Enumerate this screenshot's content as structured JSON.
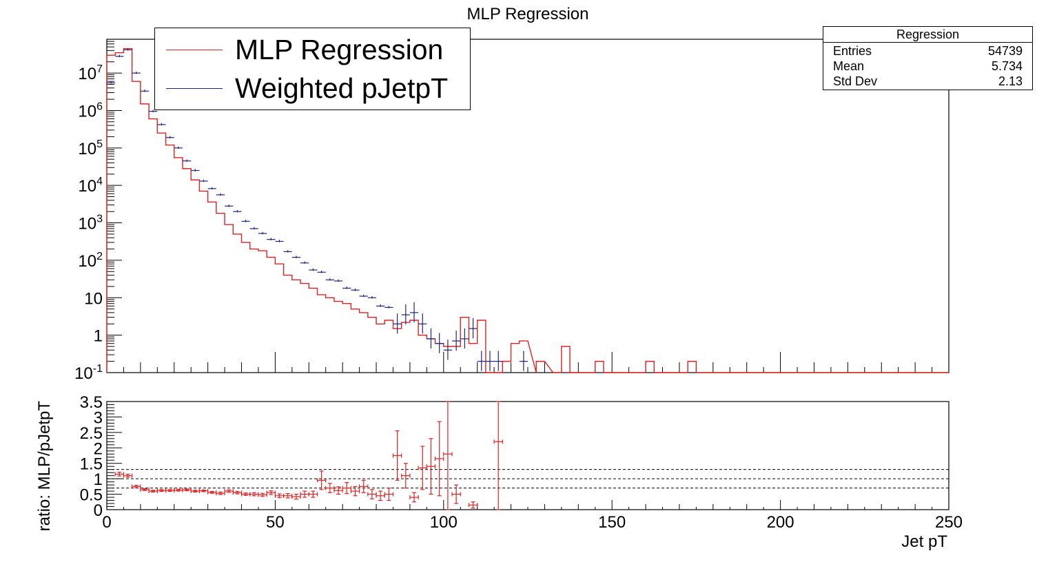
{
  "chart_data": [
    {
      "type": "histogram",
      "title": "MLP Regression",
      "xlim": [
        0,
        250
      ],
      "ylim": [
        0.1,
        80000000
      ],
      "yscale": "log",
      "y_tick_labels": [
        "10^-1",
        "1",
        "10",
        "10^2",
        "10^3",
        "10^4",
        "10^5",
        "10^6",
        "10^7"
      ],
      "bin_width": 2.5,
      "legend": [
        {
          "label": "MLP Regression",
          "color": "#e02020"
        },
        {
          "label": "Weighted pJetpT",
          "color": "#1a237e"
        }
      ],
      "stats_box": {
        "title": "Regression",
        "rows": [
          {
            "label": "Entries",
            "value": "54739"
          },
          {
            "label": "Mean",
            "value": "5.734"
          },
          {
            "label": "Std Dev",
            "value": "2.13"
          }
        ]
      },
      "series": [
        {
          "name": "MLP Regression",
          "style": "step",
          "color": "#e02020",
          "bin_edges_start": [
            0,
            2.5,
            5,
            7.5,
            10,
            12.5,
            15,
            17.5,
            20,
            22.5,
            25,
            27.5,
            30,
            32.5,
            35,
            37.5,
            40,
            42.5,
            45,
            47.5,
            50,
            52.5,
            55,
            57.5,
            60,
            62.5,
            65,
            67.5,
            70,
            72.5,
            75,
            77.5,
            80,
            82.5,
            85,
            87.5,
            90,
            92.5,
            95,
            97.5,
            100,
            102.5,
            105,
            107.5,
            110,
            112.5,
            117.5,
            120,
            122.5,
            127.5,
            132.5,
            135,
            137.5,
            145,
            147.5,
            160,
            162.5,
            172.5,
            175
          ],
          "values": [
            30000000,
            35000000,
            45000000,
            6000000,
            1500000,
            600000,
            250000,
            120000,
            55000,
            28000,
            14000,
            7000,
            3600,
            1800,
            900,
            500,
            300,
            200,
            180,
            120,
            80,
            40,
            30,
            24,
            18,
            12,
            10,
            8,
            7,
            5,
            4,
            3,
            2,
            2.5,
            1.5,
            2.2,
            2.5,
            1,
            0.8,
            0.6,
            0.5,
            0.5,
            3,
            0.6,
            2.5,
            0.1,
            0.2,
            0.6,
            0.7,
            0.2,
            0.1,
            0.5,
            0.1,
            0.2,
            0.1,
            0.2,
            0.1,
            0.2,
            0.1
          ]
        },
        {
          "name": "Weighted pJetpT",
          "style": "points",
          "color": "#1a237e",
          "x": [
            1.25,
            3.75,
            6.25,
            8.75,
            11.25,
            13.75,
            16.25,
            18.75,
            21.25,
            23.75,
            26.25,
            28.75,
            31.25,
            33.75,
            36.25,
            38.75,
            41.25,
            43.75,
            46.25,
            48.75,
            51.25,
            53.75,
            56.25,
            58.75,
            61.25,
            63.75,
            66.25,
            68.75,
            71.25,
            73.75,
            76.25,
            78.75,
            81.25,
            83.75,
            86.25,
            88.75,
            91.25,
            93.75,
            96.25,
            98.75,
            101.25,
            103.75,
            106.25,
            108.75,
            111.25,
            113.75,
            116.25,
            123.75
          ],
          "y": [
            5500000,
            28000000,
            42000000,
            10000000,
            3300000,
            950000,
            420000,
            190000,
            100000,
            45000,
            25000,
            13000,
            8200,
            5600,
            2800,
            2000,
            1100,
            700,
            520,
            360,
            320,
            170,
            120,
            85,
            55,
            48,
            30,
            28,
            18,
            16,
            11,
            10,
            6,
            5.5,
            2,
            3.5,
            4,
            2,
            0.8,
            0.6,
            0.4,
            0.7,
            0.8,
            1.5,
            0.2,
            0.2,
            0.2,
            0.2
          ]
        }
      ]
    },
    {
      "type": "scatter",
      "xlabel": "Jet pT",
      "ylabel": "ratio: MLP/pJetpT",
      "xlim": [
        0,
        250
      ],
      "ylim": [
        0,
        3.5
      ],
      "x_tick_labels": [
        "0",
        "50",
        "100",
        "150",
        "200",
        "250"
      ],
      "y_tick_labels": [
        "0",
        "0.5",
        "1",
        "1.5",
        "2",
        "2.5",
        "3",
        "3.5"
      ],
      "reference_lines": [
        0.7,
        1.0,
        1.3
      ],
      "series": [
        {
          "name": "ratio",
          "color": "#e02020",
          "x": [
            3.75,
            6.25,
            8.75,
            11.25,
            13.75,
            16.25,
            18.75,
            21.25,
            23.75,
            26.25,
            28.75,
            31.25,
            33.75,
            36.25,
            38.75,
            41.25,
            43.75,
            46.25,
            48.75,
            51.25,
            53.75,
            56.25,
            58.75,
            61.25,
            63.75,
            66.25,
            68.75,
            71.25,
            73.75,
            76.25,
            78.75,
            81.25,
            83.75,
            86.25,
            88.75,
            91.25,
            93.75,
            96.25,
            98.75,
            101.25,
            103.75,
            108.75,
            116.25
          ],
          "y": [
            1.15,
            1.1,
            0.75,
            0.65,
            0.6,
            0.62,
            0.62,
            0.63,
            0.64,
            0.6,
            0.61,
            0.56,
            0.53,
            0.6,
            0.55,
            0.5,
            0.5,
            0.48,
            0.55,
            0.45,
            0.45,
            0.42,
            0.5,
            0.5,
            0.95,
            0.7,
            0.62,
            0.7,
            0.6,
            0.75,
            0.5,
            0.45,
            0.5,
            1.75,
            1.1,
            0.4,
            1.35,
            1.4,
            1.65,
            1.8,
            0.5,
            0.15,
            2.2
          ],
          "y_err": [
            0.06,
            0.05,
            0.04,
            0.03,
            0.03,
            0.03,
            0.03,
            0.03,
            0.03,
            0.03,
            0.03,
            0.03,
            0.04,
            0.04,
            0.04,
            0.04,
            0.05,
            0.05,
            0.06,
            0.06,
            0.07,
            0.08,
            0.1,
            0.1,
            0.3,
            0.15,
            0.12,
            0.18,
            0.15,
            0.2,
            0.15,
            0.15,
            0.2,
            0.8,
            0.4,
            0.15,
            0.7,
            0.9,
            1.2,
            1.8,
            0.3,
            0.1,
            2.5
          ]
        }
      ]
    }
  ]
}
